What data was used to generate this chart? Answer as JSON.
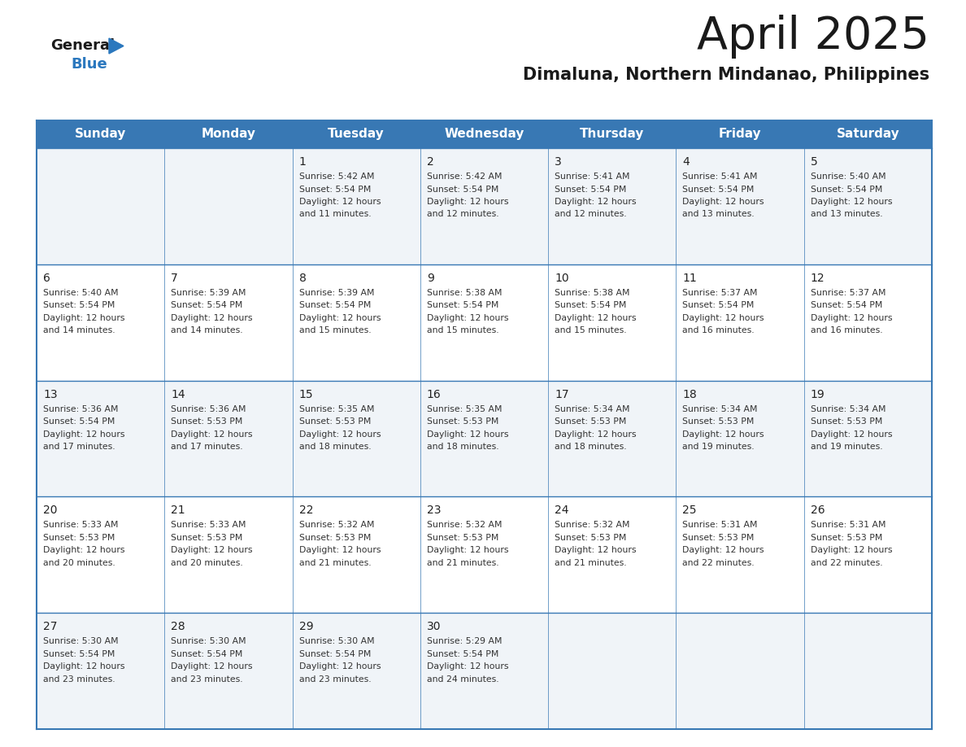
{
  "title": "April 2025",
  "subtitle": "Dimaluna, Northern Mindanao, Philippines",
  "header_bg_color": "#3878b4",
  "header_text_color": "#ffffff",
  "day_names": [
    "Sunday",
    "Monday",
    "Tuesday",
    "Wednesday",
    "Thursday",
    "Friday",
    "Saturday"
  ],
  "bg_color": "#ffffff",
  "cell_bg_even": "#f0f4f8",
  "cell_bg_odd": "#ffffff",
  "border_color": "#3878b4",
  "day_number_color": "#222222",
  "cell_text_color": "#333333",
  "title_color": "#1a1a1a",
  "subtitle_color": "#1a1a1a",
  "logo_blue_color": "#2b78be",
  "calendar_data": [
    [
      null,
      null,
      {
        "day": 1,
        "sunrise": "5:42 AM",
        "sunset": "5:54 PM",
        "daylight": "12 hours and 11 minutes."
      },
      {
        "day": 2,
        "sunrise": "5:42 AM",
        "sunset": "5:54 PM",
        "daylight": "12 hours and 12 minutes."
      },
      {
        "day": 3,
        "sunrise": "5:41 AM",
        "sunset": "5:54 PM",
        "daylight": "12 hours and 12 minutes."
      },
      {
        "day": 4,
        "sunrise": "5:41 AM",
        "sunset": "5:54 PM",
        "daylight": "12 hours and 13 minutes."
      },
      {
        "day": 5,
        "sunrise": "5:40 AM",
        "sunset": "5:54 PM",
        "daylight": "12 hours and 13 minutes."
      }
    ],
    [
      {
        "day": 6,
        "sunrise": "5:40 AM",
        "sunset": "5:54 PM",
        "daylight": "12 hours and 14 minutes."
      },
      {
        "day": 7,
        "sunrise": "5:39 AM",
        "sunset": "5:54 PM",
        "daylight": "12 hours and 14 minutes."
      },
      {
        "day": 8,
        "sunrise": "5:39 AM",
        "sunset": "5:54 PM",
        "daylight": "12 hours and 15 minutes."
      },
      {
        "day": 9,
        "sunrise": "5:38 AM",
        "sunset": "5:54 PM",
        "daylight": "12 hours and 15 minutes."
      },
      {
        "day": 10,
        "sunrise": "5:38 AM",
        "sunset": "5:54 PM",
        "daylight": "12 hours and 15 minutes."
      },
      {
        "day": 11,
        "sunrise": "5:37 AM",
        "sunset": "5:54 PM",
        "daylight": "12 hours and 16 minutes."
      },
      {
        "day": 12,
        "sunrise": "5:37 AM",
        "sunset": "5:54 PM",
        "daylight": "12 hours and 16 minutes."
      }
    ],
    [
      {
        "day": 13,
        "sunrise": "5:36 AM",
        "sunset": "5:54 PM",
        "daylight": "12 hours and 17 minutes."
      },
      {
        "day": 14,
        "sunrise": "5:36 AM",
        "sunset": "5:53 PM",
        "daylight": "12 hours and 17 minutes."
      },
      {
        "day": 15,
        "sunrise": "5:35 AM",
        "sunset": "5:53 PM",
        "daylight": "12 hours and 18 minutes."
      },
      {
        "day": 16,
        "sunrise": "5:35 AM",
        "sunset": "5:53 PM",
        "daylight": "12 hours and 18 minutes."
      },
      {
        "day": 17,
        "sunrise": "5:34 AM",
        "sunset": "5:53 PM",
        "daylight": "12 hours and 18 minutes."
      },
      {
        "day": 18,
        "sunrise": "5:34 AM",
        "sunset": "5:53 PM",
        "daylight": "12 hours and 19 minutes."
      },
      {
        "day": 19,
        "sunrise": "5:34 AM",
        "sunset": "5:53 PM",
        "daylight": "12 hours and 19 minutes."
      }
    ],
    [
      {
        "day": 20,
        "sunrise": "5:33 AM",
        "sunset": "5:53 PM",
        "daylight": "12 hours and 20 minutes."
      },
      {
        "day": 21,
        "sunrise": "5:33 AM",
        "sunset": "5:53 PM",
        "daylight": "12 hours and 20 minutes."
      },
      {
        "day": 22,
        "sunrise": "5:32 AM",
        "sunset": "5:53 PM",
        "daylight": "12 hours and 21 minutes."
      },
      {
        "day": 23,
        "sunrise": "5:32 AM",
        "sunset": "5:53 PM",
        "daylight": "12 hours and 21 minutes."
      },
      {
        "day": 24,
        "sunrise": "5:32 AM",
        "sunset": "5:53 PM",
        "daylight": "12 hours and 21 minutes."
      },
      {
        "day": 25,
        "sunrise": "5:31 AM",
        "sunset": "5:53 PM",
        "daylight": "12 hours and 22 minutes."
      },
      {
        "day": 26,
        "sunrise": "5:31 AM",
        "sunset": "5:53 PM",
        "daylight": "12 hours and 22 minutes."
      }
    ],
    [
      {
        "day": 27,
        "sunrise": "5:30 AM",
        "sunset": "5:54 PM",
        "daylight": "12 hours and 23 minutes."
      },
      {
        "day": 28,
        "sunrise": "5:30 AM",
        "sunset": "5:54 PM",
        "daylight": "12 hours and 23 minutes."
      },
      {
        "day": 29,
        "sunrise": "5:30 AM",
        "sunset": "5:54 PM",
        "daylight": "12 hours and 23 minutes."
      },
      {
        "day": 30,
        "sunrise": "5:29 AM",
        "sunset": "5:54 PM",
        "daylight": "12 hours and 24 minutes."
      },
      null,
      null,
      null
    ]
  ]
}
